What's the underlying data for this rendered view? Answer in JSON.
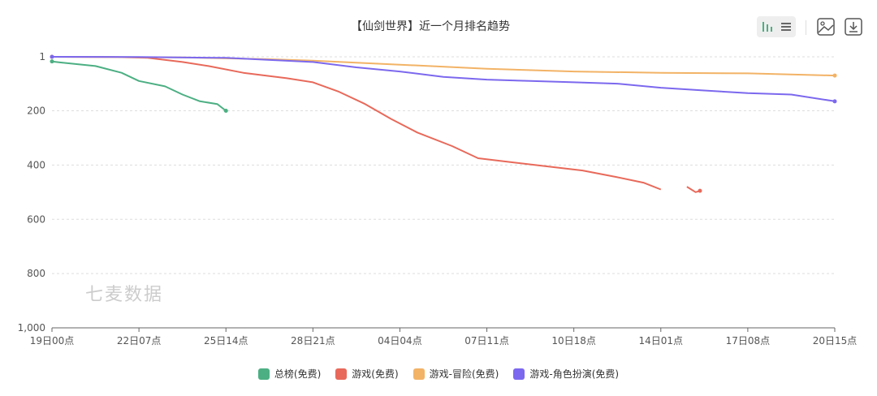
{
  "chart_data": {
    "type": "line",
    "title": "【仙剑世界】近一个月排名趋势",
    "x_ticks": [
      "19日00点",
      "22日07点",
      "25日14点",
      "28日21点",
      "04日04点",
      "07日11点",
      "10日18点",
      "14日01点",
      "17日08点",
      "20日15点"
    ],
    "y_ticks": [
      "1",
      "200",
      "400",
      "600",
      "800",
      "1,000"
    ],
    "ylim": [
      1,
      1000
    ],
    "y_inverted": true,
    "grid": true,
    "legend_position": "bottom",
    "series": [
      {
        "name": "总榜(免费)",
        "color": "#4caf83",
        "points": [
          [
            0,
            18
          ],
          [
            0.1,
            22
          ],
          [
            0.5,
            35
          ],
          [
            0.8,
            60
          ],
          [
            1.0,
            90
          ],
          [
            1.3,
            110
          ],
          [
            1.5,
            140
          ],
          [
            1.7,
            165
          ],
          [
            1.9,
            175
          ],
          [
            2.0,
            200
          ]
        ]
      },
      {
        "name": "游戏(免费)",
        "color": "#e8695a",
        "points": [
          [
            0,
            1
          ],
          [
            0.7,
            2
          ],
          [
            1.1,
            5
          ],
          [
            1.5,
            20
          ],
          [
            1.8,
            35
          ],
          [
            2.2,
            60
          ],
          [
            2.7,
            80
          ],
          [
            3.0,
            95
          ],
          [
            3.3,
            130
          ],
          [
            3.6,
            175
          ],
          [
            3.9,
            230
          ],
          [
            4.2,
            280
          ],
          [
            4.6,
            330
          ],
          [
            4.9,
            375
          ],
          [
            5.3,
            390
          ],
          [
            5.7,
            405
          ],
          [
            6.1,
            420
          ],
          [
            6.5,
            445
          ],
          [
            6.8,
            465
          ],
          [
            7.0,
            490
          ],
          null,
          [
            7.3,
            480
          ],
          [
            7.4,
            500
          ],
          [
            7.45,
            495
          ]
        ]
      },
      {
        "name": "游戏-冒险(免费)",
        "color": "#f2b366",
        "points": [
          [
            0,
            1
          ],
          [
            1.5,
            3
          ],
          [
            2.5,
            10
          ],
          [
            3.0,
            15
          ],
          [
            4.0,
            30
          ],
          [
            5.0,
            45
          ],
          [
            6.0,
            55
          ],
          [
            7.0,
            60
          ],
          [
            8.0,
            62
          ],
          [
            9.0,
            70
          ]
        ]
      },
      {
        "name": "游戏-角色扮演(免费)",
        "color": "#7b68ee",
        "points": [
          [
            0,
            1
          ],
          [
            1.0,
            2
          ],
          [
            2.0,
            5
          ],
          [
            3.0,
            20
          ],
          [
            3.5,
            40
          ],
          [
            4.0,
            55
          ],
          [
            4.5,
            75
          ],
          [
            5.0,
            85
          ],
          [
            5.5,
            90
          ],
          [
            6.0,
            95
          ],
          [
            6.5,
            100
          ],
          [
            7.0,
            115
          ],
          [
            7.5,
            125
          ],
          [
            8.0,
            135
          ],
          [
            8.5,
            140
          ],
          [
            9.0,
            165
          ]
        ]
      }
    ]
  },
  "watermark": "七麦数据"
}
